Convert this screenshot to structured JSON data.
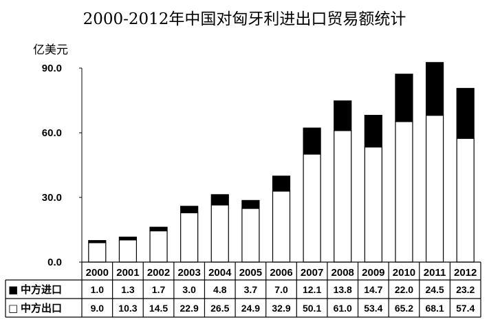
{
  "chart_data": {
    "type": "bar",
    "stacked": true,
    "title": "2000-2012年中国对匈牙利进出口贸易额统计",
    "ylabel": "亿美元",
    "ylim": [
      0,
      90
    ],
    "yticks": [
      "0.0",
      "30.0",
      "60.0",
      "90.0"
    ],
    "grid": false,
    "categories": [
      "2000",
      "2001",
      "2002",
      "2003",
      "2004",
      "2005",
      "2006",
      "2007",
      "2008",
      "2009",
      "2010",
      "2011",
      "2012"
    ],
    "series": [
      {
        "name": "中方出口",
        "color": "#ffffff",
        "values": [
          9.0,
          10.3,
          14.5,
          22.9,
          26.5,
          24.9,
          32.9,
          50.1,
          61.0,
          53.4,
          65.2,
          68.1,
          57.4
        ]
      },
      {
        "name": "中方进口",
        "color": "#000000",
        "values": [
          1.0,
          1.3,
          1.7,
          3.0,
          4.8,
          3.7,
          7.0,
          12.1,
          13.8,
          14.7,
          22.0,
          24.5,
          23.2
        ]
      }
    ],
    "data_table": {
      "rows": [
        {
          "legend_marker": "■",
          "label": "中方进口",
          "values": [
            "1.0",
            "1.3",
            "1.7",
            "3.0",
            "4.8",
            "3.7",
            "7.0",
            "12.1",
            "13.8",
            "14.7",
            "22.0",
            "24.5",
            "23.2"
          ]
        },
        {
          "legend_marker": "□",
          "label": "中方出口",
          "values": [
            "9.0",
            "10.3",
            "14.5",
            "22.9",
            "26.5",
            "24.9",
            "32.9",
            "50.1",
            "61.0",
            "53.4",
            "65.2",
            "68.1",
            "57.4"
          ]
        }
      ]
    }
  }
}
